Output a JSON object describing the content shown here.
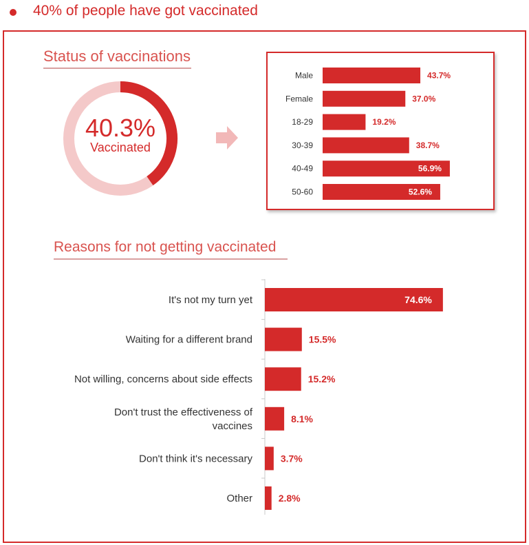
{
  "header": {
    "title": "40% of people have got vaccinated"
  },
  "status": {
    "title": "Status of vaccinations",
    "donut_value": "40.3%",
    "donut_label": "Vaccinated"
  },
  "reasons": {
    "title": "Reasons for not getting vaccinated"
  },
  "colors": {
    "accent": "#d42a2a",
    "light": "#f4c9c9",
    "text": "#333333"
  },
  "chart_data": [
    {
      "type": "pie",
      "title": "Status of vaccinations",
      "categories": [
        "Vaccinated",
        "Not vaccinated"
      ],
      "values": [
        40.3,
        59.7
      ]
    },
    {
      "type": "bar",
      "orientation": "horizontal",
      "categories": [
        "Male",
        "Female",
        "18-29",
        "30-39",
        "40-49",
        "50-60"
      ],
      "values": [
        43.7,
        37.0,
        19.2,
        38.7,
        56.9,
        52.6
      ],
      "labels": [
        "43.7%",
        "37.0%",
        "19.2%",
        "38.7%",
        "56.9%",
        "52.6%"
      ],
      "label_inside": [
        false,
        false,
        false,
        false,
        true,
        true
      ]
    },
    {
      "type": "bar",
      "orientation": "horizontal",
      "title": "Reasons for not getting vaccinated",
      "categories": [
        [
          "It's not my turn yet"
        ],
        [
          "Waiting for a different brand"
        ],
        [
          "Not willing, concerns about side effects"
        ],
        [
          "Don't trust the effectiveness of",
          "vaccines"
        ],
        [
          "Don't think it's necessary"
        ],
        [
          "Other"
        ]
      ],
      "values": [
        74.6,
        15.5,
        15.2,
        8.1,
        3.7,
        2.8
      ],
      "labels": [
        "74.6%",
        "15.5%",
        "15.2%",
        "8.1%",
        "3.7%",
        "2.8%"
      ],
      "label_inside": [
        true,
        false,
        false,
        false,
        false,
        false
      ]
    }
  ]
}
